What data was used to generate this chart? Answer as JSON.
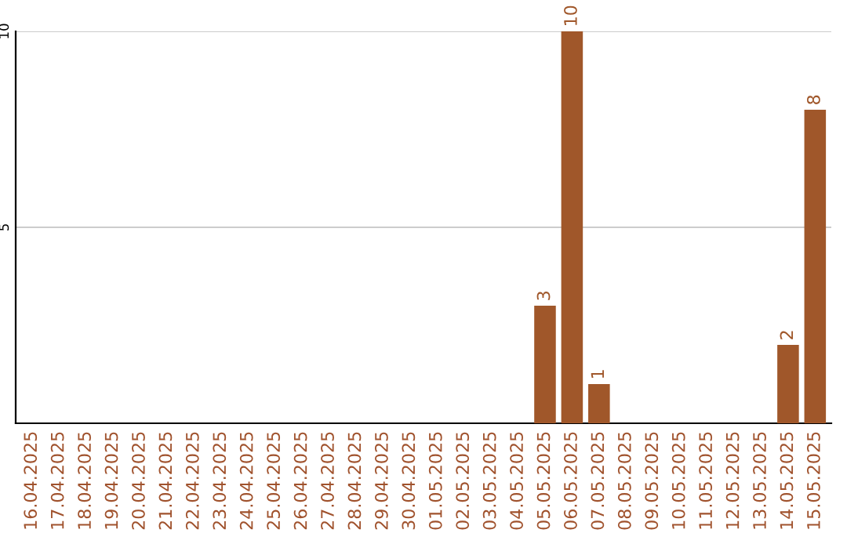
{
  "chart_data": {
    "type": "bar",
    "categories": [
      "16.04.2025",
      "17.04.2025",
      "18.04.2025",
      "19.04.2025",
      "20.04.2025",
      "21.04.2025",
      "22.04.2025",
      "23.04.2025",
      "24.04.2025",
      "25.04.2025",
      "26.04.2025",
      "27.04.2025",
      "28.04.2025",
      "29.04.2025",
      "30.04.2025",
      "01.05.2025",
      "02.05.2025",
      "03.05.2025",
      "04.05.2025",
      "05.05.2025",
      "06.05.2025",
      "07.05.2025",
      "08.05.2025",
      "09.05.2025",
      "10.05.2025",
      "11.05.2025",
      "12.05.2025",
      "13.05.2025",
      "14.05.2025",
      "15.05.2025"
    ],
    "values": [
      0,
      0,
      0,
      0,
      0,
      0,
      0,
      0,
      0,
      0,
      0,
      0,
      0,
      0,
      0,
      0,
      0,
      0,
      0,
      3,
      10,
      1,
      0,
      0,
      0,
      0,
      0,
      0,
      2,
      8
    ],
    "value_labels": [
      null,
      null,
      null,
      null,
      null,
      null,
      null,
      null,
      null,
      null,
      null,
      null,
      null,
      null,
      null,
      null,
      null,
      null,
      null,
      "3",
      "10",
      "1",
      null,
      null,
      null,
      null,
      null,
      null,
      "2",
      "8"
    ],
    "color": "#a0572a",
    "ylim": [
      0,
      10
    ],
    "yticks": [
      5,
      10
    ],
    "grid": "y"
  }
}
